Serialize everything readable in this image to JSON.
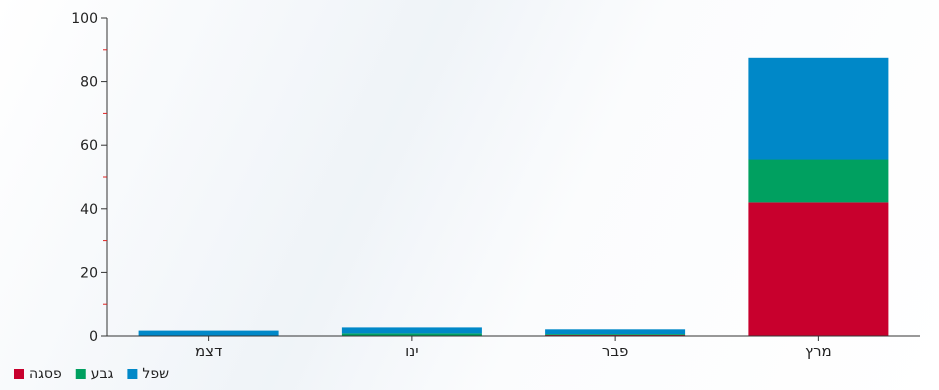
{
  "chart_data": {
    "type": "bar",
    "stacked": true,
    "title": "",
    "xlabel": "",
    "ylabel": "",
    "ylim": [
      0,
      100
    ],
    "yticks": [
      0,
      20,
      40,
      60,
      80,
      100
    ],
    "categories": [
      "דצמ",
      "ינו",
      "פבר",
      "מרץ"
    ],
    "series": [
      {
        "name": "פסגה",
        "color": "#c8002d",
        "values": [
          0,
          0,
          0.3,
          42
        ]
      },
      {
        "name": "גבע",
        "color": "#00a060",
        "values": [
          0,
          0.8,
          0.3,
          13.5
        ]
      },
      {
        "name": "שפל",
        "color": "#0088c8",
        "values": [
          1.7,
          1.9,
          1.5,
          32
        ]
      }
    ],
    "legend_position": "bottom-left",
    "grid": false
  }
}
